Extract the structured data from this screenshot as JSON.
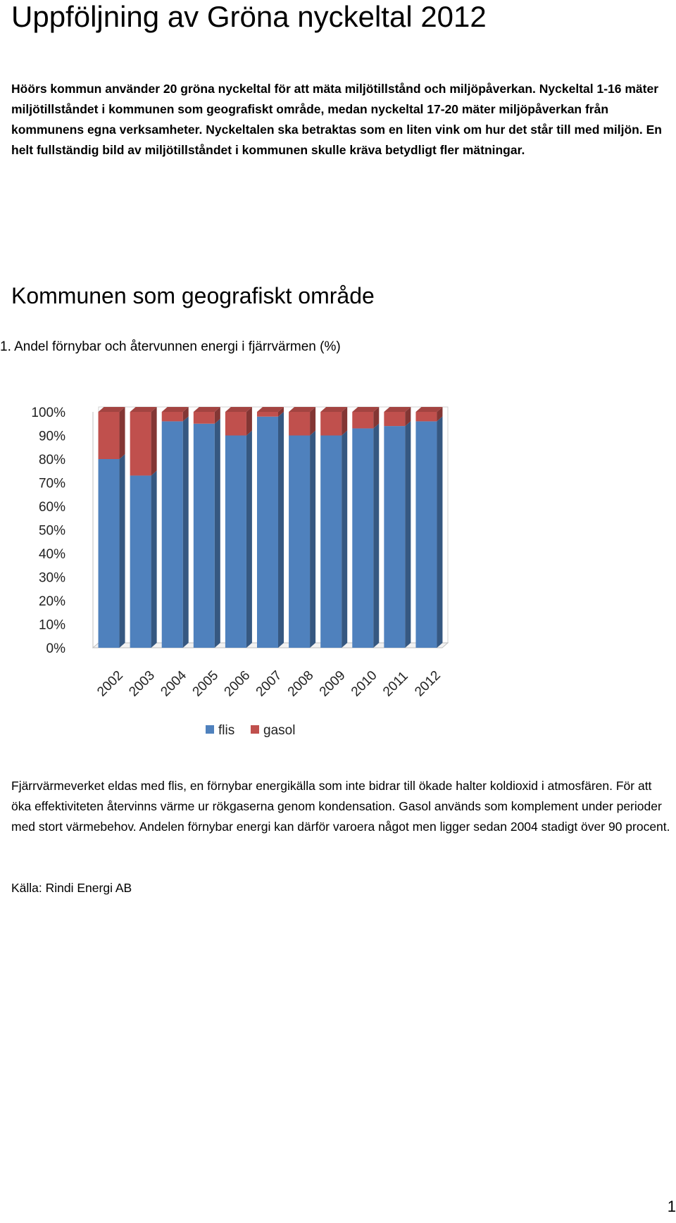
{
  "document": {
    "title": "Uppföljning av Gröna nyckeltal 2012",
    "intro": "Höörs kommun använder 20 gröna nyckeltal för att mäta miljötillstånd och miljöpåverkan. Nyckeltal 1-16 mäter miljötillståndet i kommunen som geografiskt område, medan nyckeltal 17-20 mäter miljöpåverkan från kommunens egna verksamheter. Nyckeltalen ska betraktas som en liten vink om hur det står till med miljön. En helt fullständig bild av miljötillståndet i kommunen skulle kräva betydligt fler mätningar.",
    "section_heading": "Kommunen som geografiskt område",
    "chart_title": "1.  Andel förnybar och återvunnen energi i fjärrvärmen (%)",
    "body_text": "Fjärrvärmeverket eldas med flis, en förnybar energikälla som inte bidrar till ökade halter koldioxid i atmosfären. För att öka effektiviteten återvinns värme ur rökgaserna genom kondensation. Gasol används som komplement under perioder med stort värmebehov. Andelen förnybar energi kan därför varoera något men ligger sedan 2004 stadigt över 90 procent.",
    "source": "Källa: Rindi Energi AB",
    "page_number": "1"
  },
  "chart_data": {
    "type": "bar",
    "stacked": true,
    "three_d": true,
    "categories": [
      "2002",
      "2003",
      "2004",
      "2005",
      "2006",
      "2007",
      "2008",
      "2009",
      "2010",
      "2011",
      "2012"
    ],
    "series": [
      {
        "name": "flis",
        "color": "#4f81bd",
        "values": [
          80,
          73,
          96,
          95,
          90,
          98,
          90,
          90,
          93,
          94,
          96
        ]
      },
      {
        "name": "gasol",
        "color": "#c0504d",
        "values": [
          20,
          27,
          4,
          5,
          10,
          2,
          10,
          10,
          7,
          6,
          4
        ]
      }
    ],
    "yticks": [
      "0%",
      "10%",
      "20%",
      "30%",
      "40%",
      "50%",
      "60%",
      "70%",
      "80%",
      "90%",
      "100%"
    ],
    "ylim": [
      0,
      100
    ],
    "legend": "bottom"
  }
}
